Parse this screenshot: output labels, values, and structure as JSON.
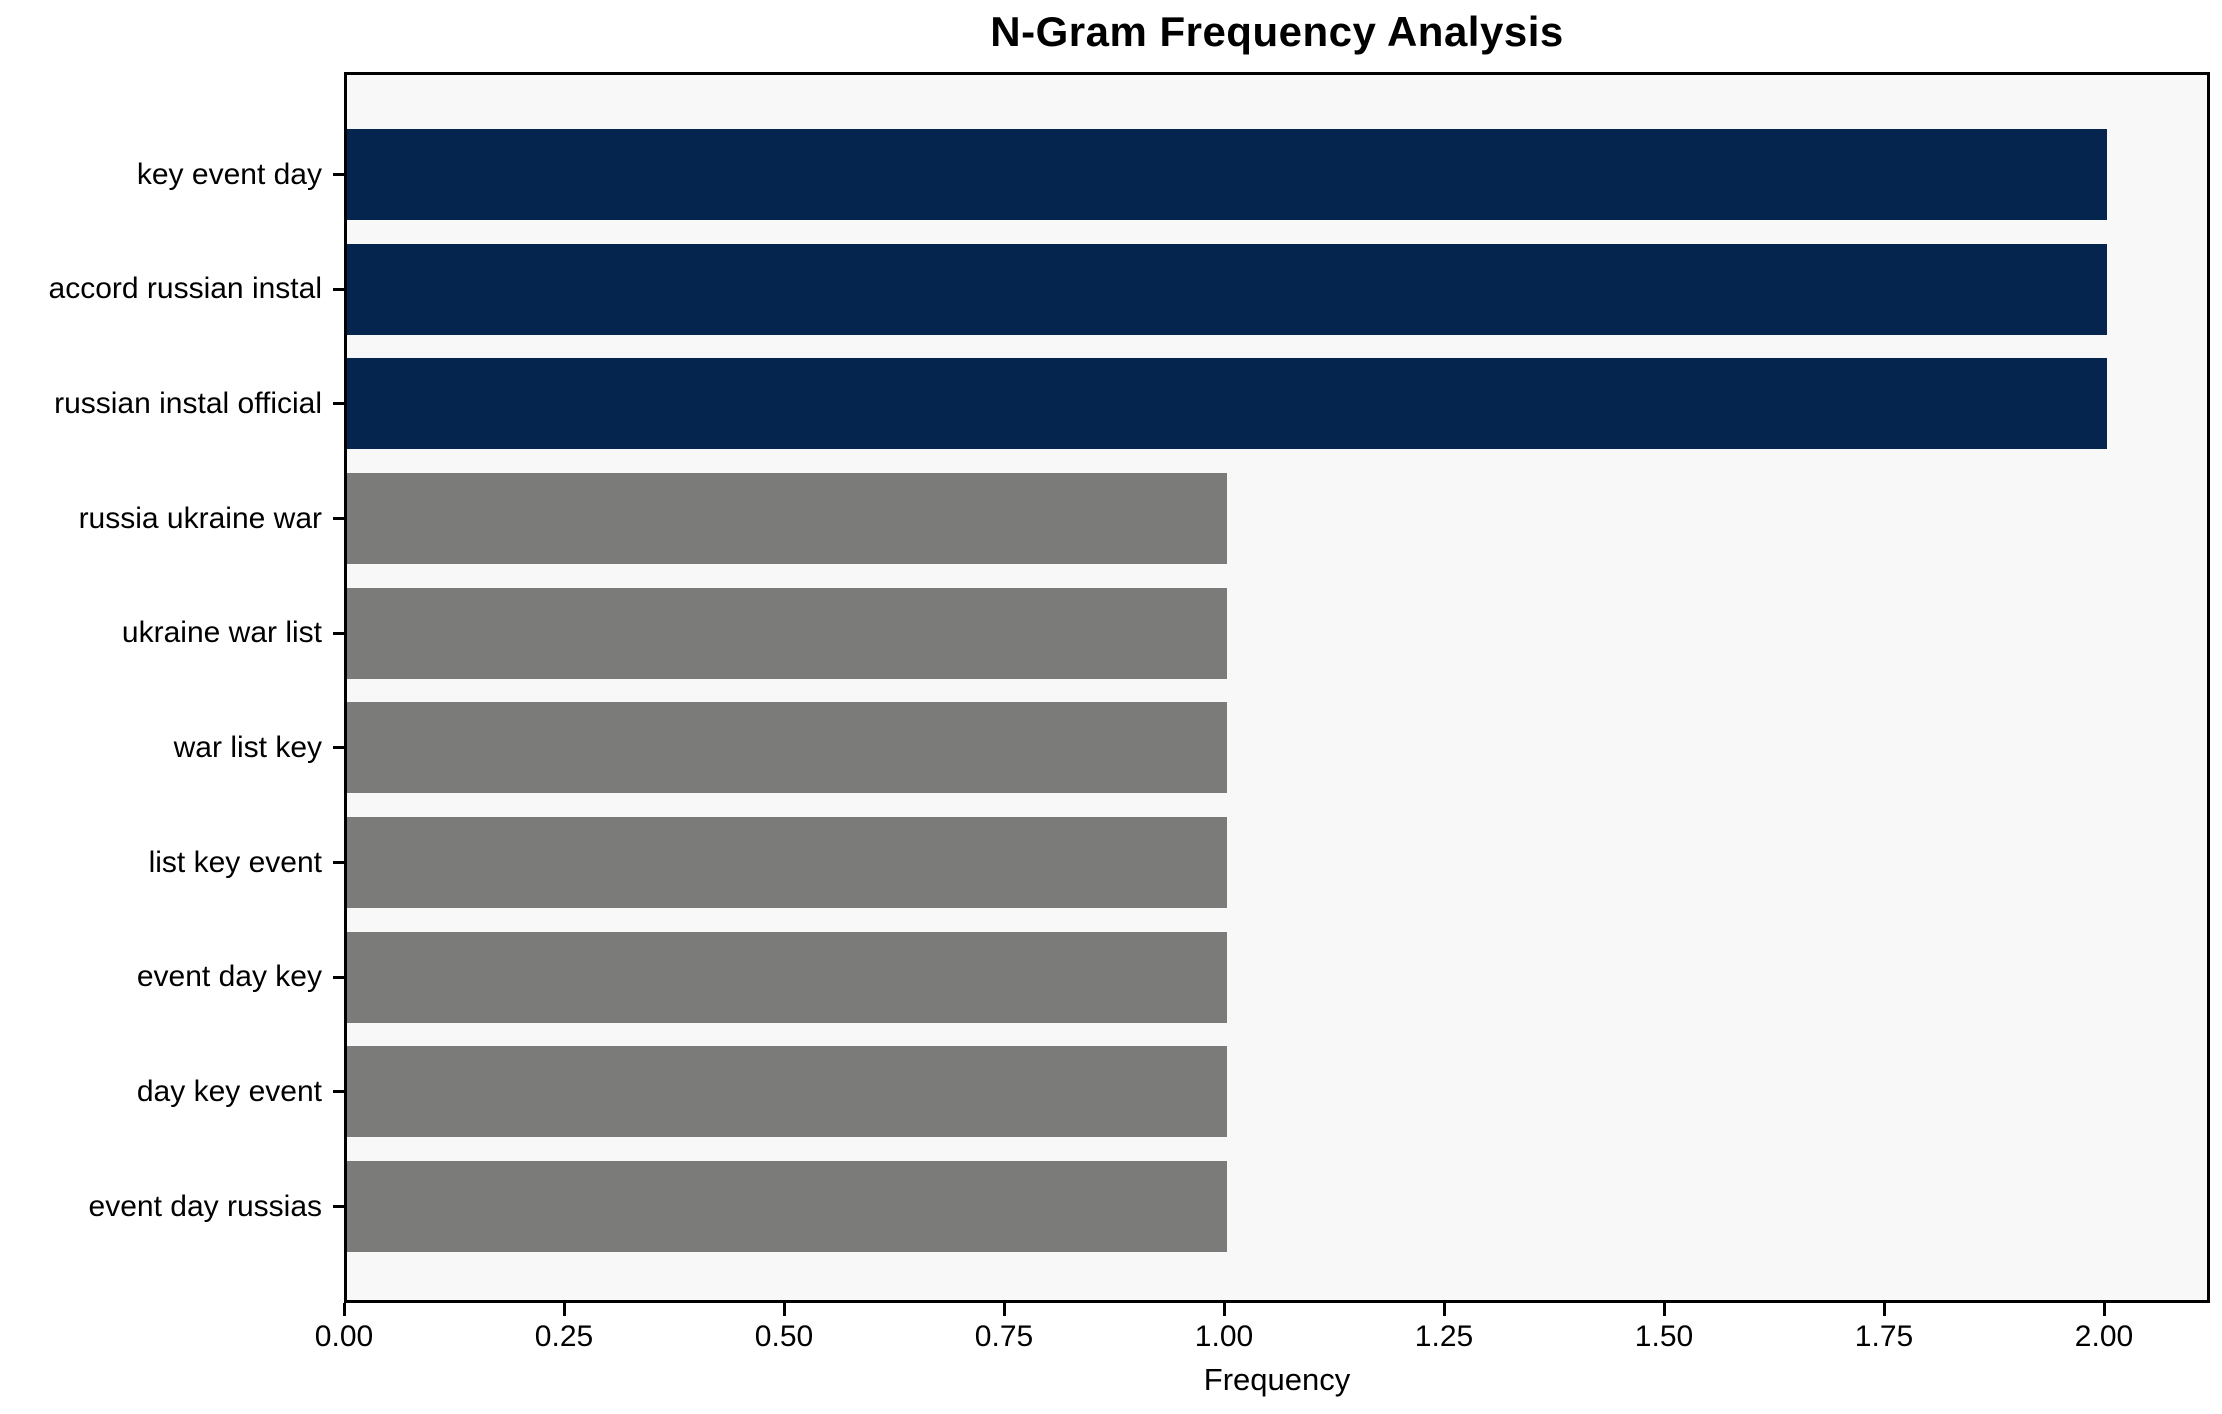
{
  "chart_data": {
    "type": "bar",
    "orientation": "horizontal",
    "title": "N-Gram Frequency Analysis",
    "xlabel": "Frequency",
    "ylabel": "",
    "categories": [
      "key event day",
      "accord russian instal",
      "russian instal official",
      "russia ukraine war",
      "ukraine war list",
      "war list key",
      "list key event",
      "event day key",
      "day key event",
      "event day russias"
    ],
    "values": [
      2,
      2,
      2,
      1,
      1,
      1,
      1,
      1,
      1,
      1
    ],
    "bar_colors": [
      "#05244e",
      "#05244e",
      "#05244e",
      "#7b7b79",
      "#7b7b79",
      "#7b7b79",
      "#7b7b79",
      "#7b7b79",
      "#7b7b79",
      "#7b7b79"
    ],
    "xlim": [
      0,
      2.12
    ],
    "xticks": [
      0,
      0.25,
      0.5,
      0.75,
      1.0,
      1.25,
      1.5,
      1.75,
      2.0
    ],
    "xtick_labels": [
      "0.00",
      "0.25",
      "0.50",
      "0.75",
      "1.00",
      "1.25",
      "1.50",
      "1.75",
      "2.00"
    ],
    "grid": false,
    "legend": null,
    "colors": {
      "highlight_bar": "#05244e",
      "default_bar": "#7b7b79",
      "plot_background": "#f8f8f8",
      "figure_background": "#ffffff",
      "spine": "#000000",
      "text": "#000000"
    }
  }
}
